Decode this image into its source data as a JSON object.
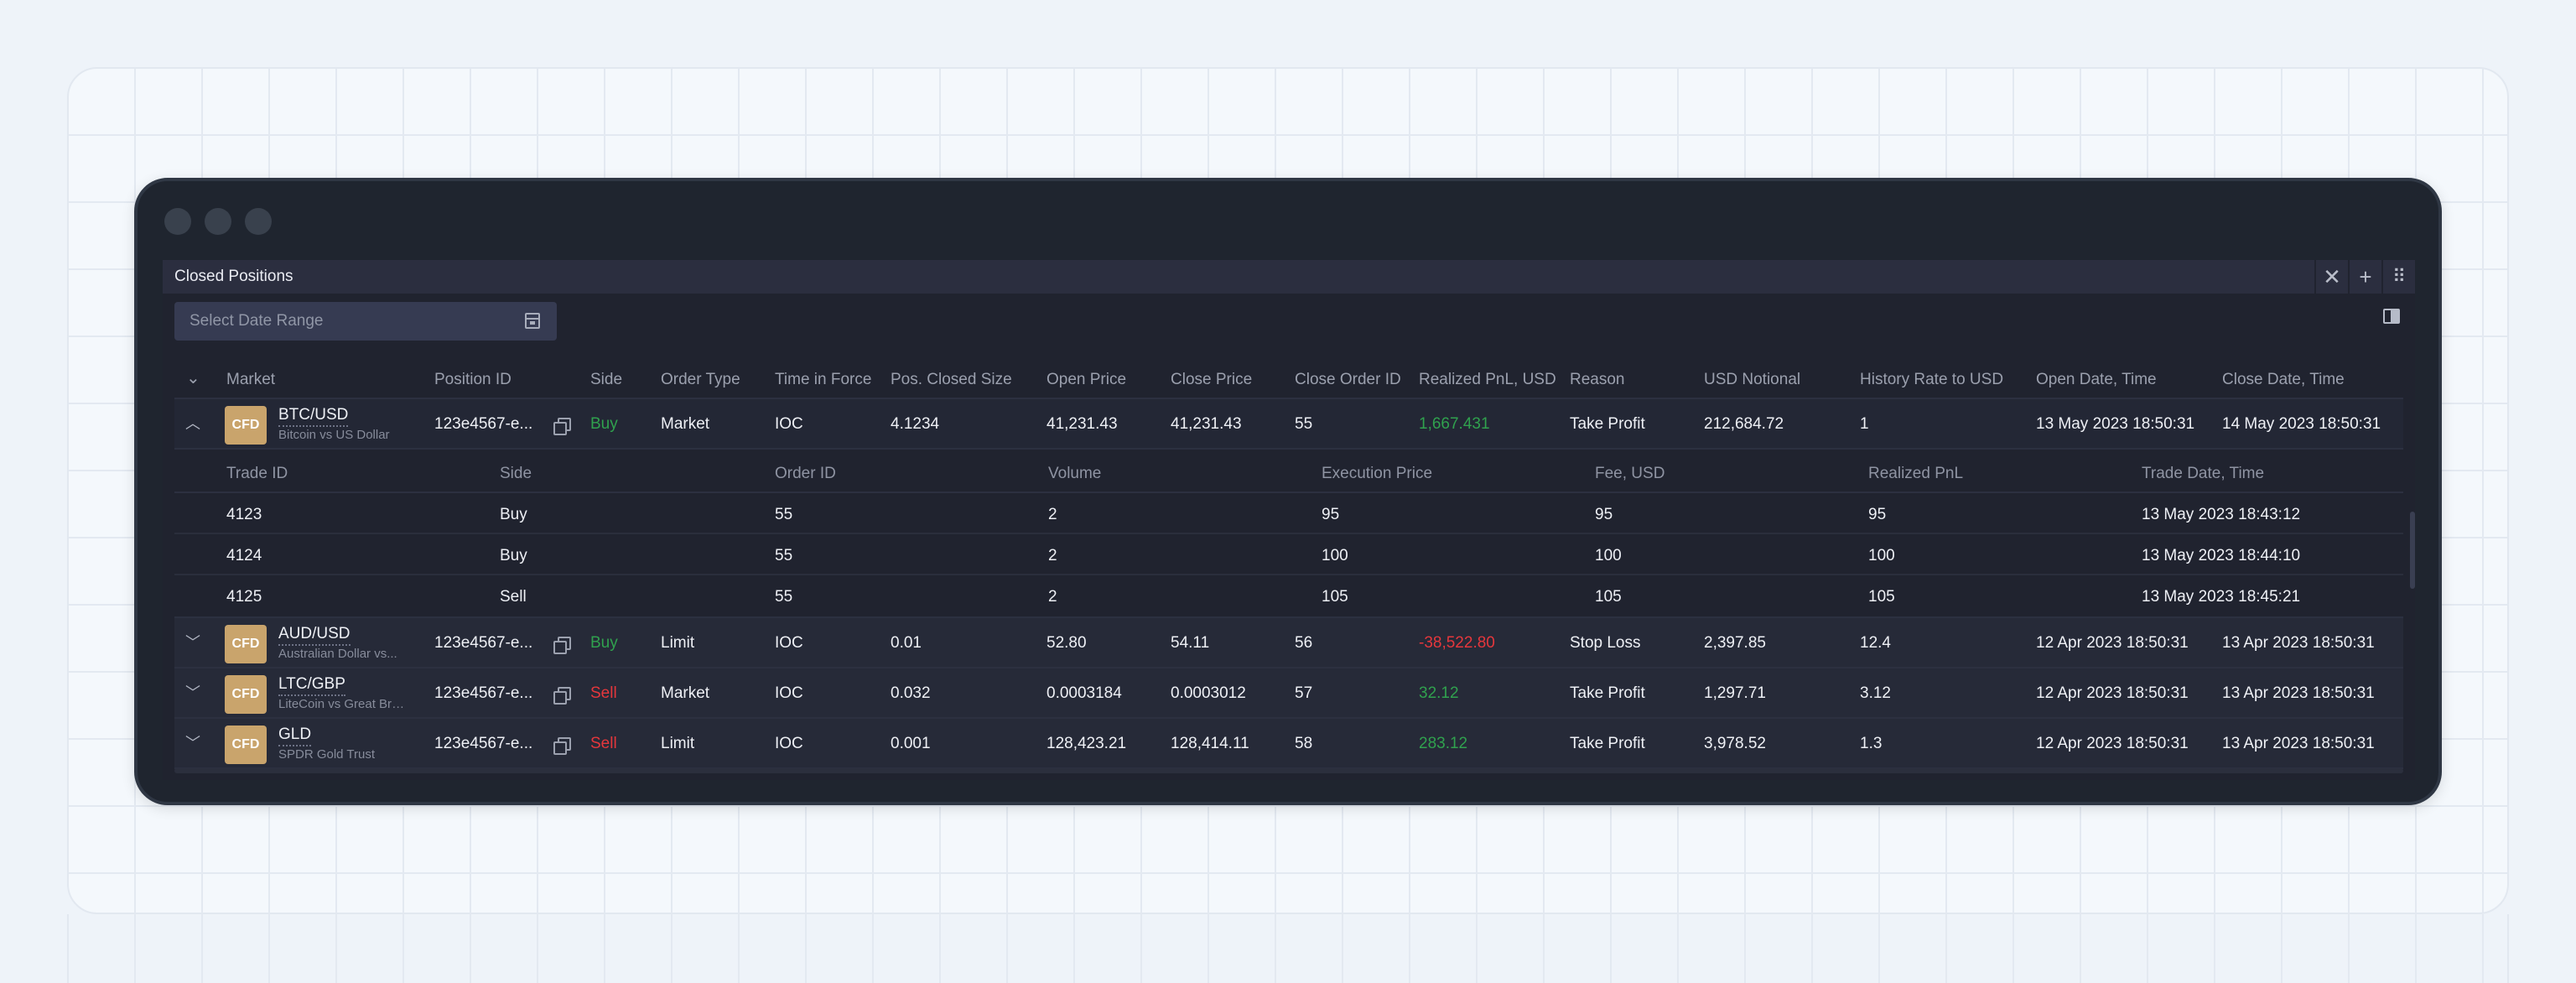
{
  "panel": {
    "title": "Closed Positions"
  },
  "toolbar": {
    "date_placeholder": "Select Date Range"
  },
  "columns": [
    "Market",
    "Position ID",
    "Side",
    "Order Type",
    "Time in Force",
    "Pos. Closed Size",
    "Open Price",
    "Close Price",
    "Close Order ID",
    "Realized PnL, USD",
    "Reason",
    "USD Notional",
    "History Rate to USD",
    "Open Date, Time",
    "Close Date, Time"
  ],
  "badge": "CFD",
  "rows": [
    {
      "market": "BTC/USD",
      "market_desc": "Bitcoin vs US Dollar",
      "position_id": "123e4567-e...",
      "side": "Buy",
      "order_type": "Market",
      "tif": "IOC",
      "closed_size": "4.1234",
      "open_price": "41,231.43",
      "close_price": "41,231.43",
      "close_order_id": "55",
      "pnl": "1,667.431",
      "reason": "Take Profit",
      "notional": "212,684.72",
      "hist_rate": "1",
      "open_dt": "13 May 2023 18:50:31",
      "close_dt": "14 May 2023 18:50:31"
    },
    {
      "market": "AUD/USD",
      "market_desc": "Australian Dollar vs...",
      "position_id": "123e4567-e...",
      "side": "Buy",
      "order_type": "Limit",
      "tif": "IOC",
      "closed_size": "0.01",
      "open_price": "52.80",
      "close_price": "54.11",
      "close_order_id": "56",
      "pnl": "-38,522.80",
      "reason": "Stop Loss",
      "notional": "2,397.85",
      "hist_rate": "12.4",
      "open_dt": "12 Apr 2023 18:50:31",
      "close_dt": "13 Apr 2023 18:50:31"
    },
    {
      "market": "LTC/GBP",
      "market_desc": "LiteCoin vs Great Brit...",
      "position_id": "123e4567-e...",
      "side": "Sell",
      "order_type": "Market",
      "tif": "IOC",
      "closed_size": "0.032",
      "open_price": "0.0003184",
      "close_price": "0.0003012",
      "close_order_id": "57",
      "pnl": "32.12",
      "reason": "Take Profit",
      "notional": "1,297.71",
      "hist_rate": "3.12",
      "open_dt": "12 Apr 2023 18:50:31",
      "close_dt": "13 Apr 2023 18:50:31"
    },
    {
      "market": "GLD",
      "market_desc": "SPDR Gold Trust",
      "position_id": "123e4567-e...",
      "side": "Sell",
      "order_type": "Limit",
      "tif": "IOC",
      "closed_size": "0.001",
      "open_price": "128,423.21",
      "close_price": "128,414.11",
      "close_order_id": "58",
      "pnl": "283.12",
      "reason": "Take Profit",
      "notional": "3,978.52",
      "hist_rate": "1.3",
      "open_dt": "12 Apr 2023 18:50:31",
      "close_dt": "13 Apr 2023 18:50:31"
    }
  ],
  "trades": {
    "columns": [
      "Trade ID",
      "Side",
      "Order ID",
      "Volume",
      "Execution Price",
      "Fee, USD",
      "Realized PnL",
      "Trade Date, Time"
    ],
    "rows": [
      {
        "trade_id": "4123",
        "side": "Buy",
        "order_id": "55",
        "volume": "2",
        "exec_price": "95",
        "fee": "95",
        "pnl": "95",
        "dt": "13 May 2023 18:43:12"
      },
      {
        "trade_id": "4124",
        "side": "Buy",
        "order_id": "55",
        "volume": "2",
        "exec_price": "100",
        "fee": "100",
        "pnl": "100",
        "dt": "13 May 2023 18:44:10"
      },
      {
        "trade_id": "4125",
        "side": "Sell",
        "order_id": "55",
        "volume": "2",
        "exec_price": "105",
        "fee": "105",
        "pnl": "105",
        "dt": "13 May 2023 18:45:21"
      }
    ]
  },
  "colors": {
    "positive": "#30a14e",
    "negative": "#e5373c",
    "fee": "#4d8ff8",
    "badge": "#c9a46c"
  }
}
